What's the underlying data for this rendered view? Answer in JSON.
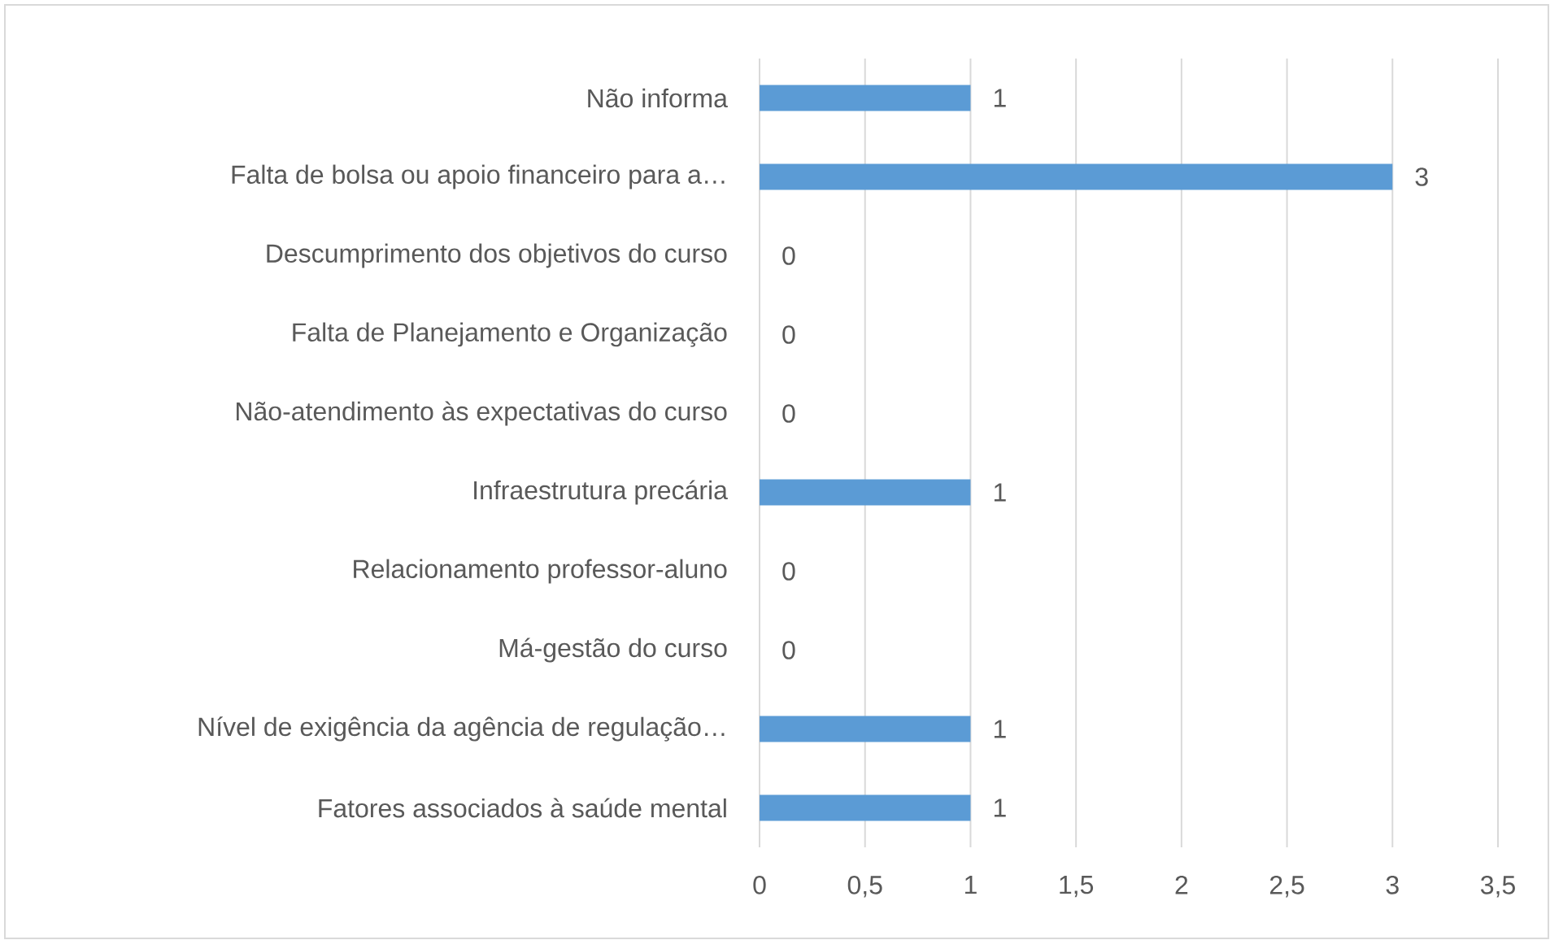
{
  "chart_data": {
    "type": "bar",
    "orientation": "horizontal",
    "categories": [
      "Não informa",
      "Falta de bolsa ou apoio financeiro para a…",
      "Descumprimento dos objetivos do curso",
      "Falta de Planejamento e Organização",
      "Não-atendimento às expectativas do curso",
      "Infraestrutura precária",
      "Relacionamento professor-aluno",
      "Má-gestão do curso",
      "Nível de exigência da agência de regulação…",
      "Fatores associados à saúde mental"
    ],
    "values": [
      1,
      3,
      0,
      0,
      0,
      1,
      0,
      0,
      1,
      1
    ],
    "color": "#5b9bd5",
    "xlim": [
      0,
      3.5
    ],
    "xticks": [
      0,
      {
        "value": 0.5,
        "label": "0,5"
      },
      1,
      {
        "value": 1.5,
        "label": "1,5"
      },
      2,
      {
        "value": 2.5,
        "label": "2,5"
      },
      3,
      {
        "value": 3.5,
        "label": "3,5"
      }
    ],
    "grid": "x",
    "data_labels": true
  }
}
